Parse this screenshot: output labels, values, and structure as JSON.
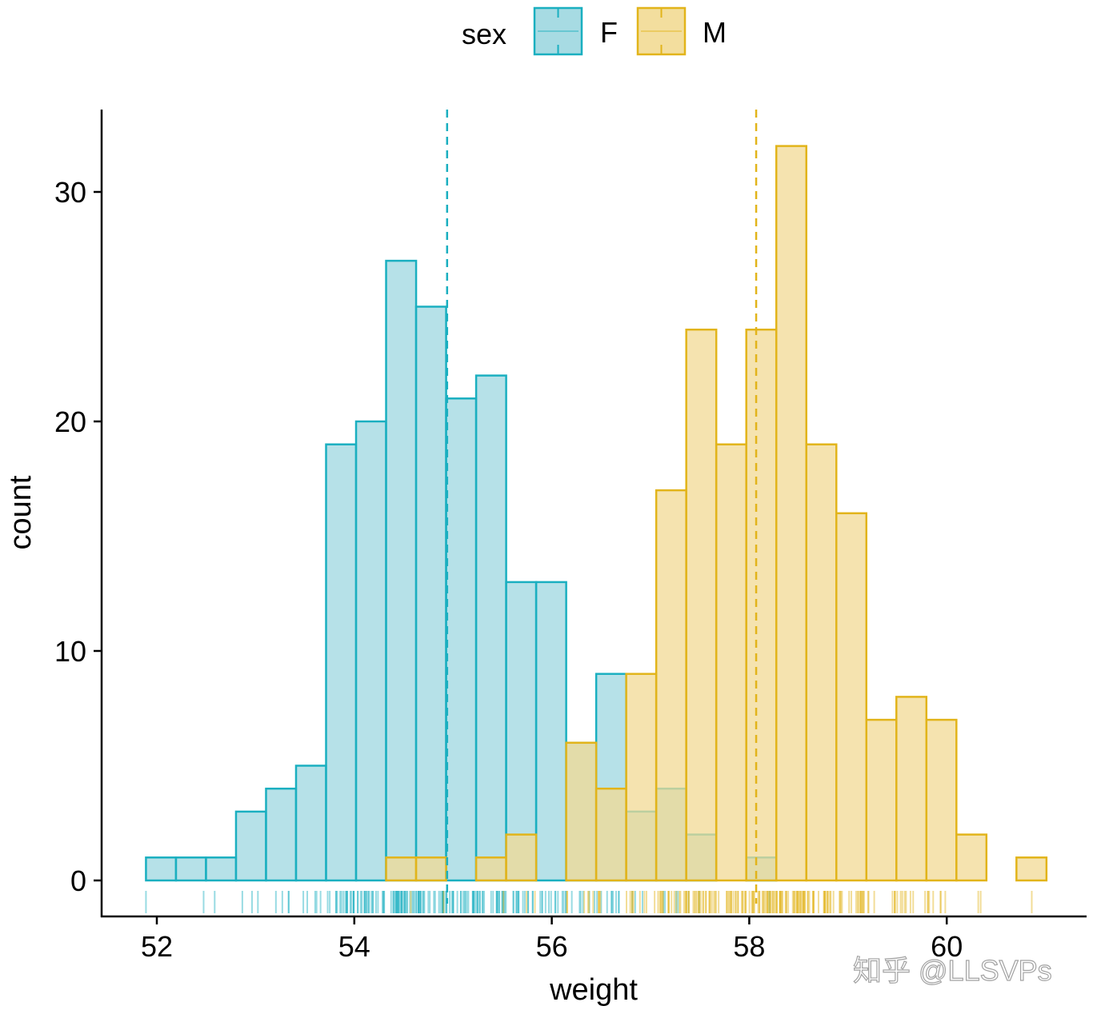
{
  "chart_data": {
    "type": "histogram",
    "xlabel": "weight",
    "ylabel": "count",
    "xlim": [
      51.6,
      61.3
    ],
    "ylim": [
      -1.5,
      33.5
    ],
    "x_ticks": [
      52,
      54,
      56,
      58,
      60
    ],
    "y_ticks": [
      0,
      10,
      20,
      30
    ],
    "grid": false,
    "legend": {
      "title": "sex",
      "position": "top",
      "entries": [
        "F",
        "M"
      ]
    },
    "bin_start": 51.89,
    "bin_width": 0.304,
    "series": [
      {
        "name": "F",
        "color": "#1AAFC0",
        "fill": "#9DD7E0",
        "mean": 54.94,
        "counts": [
          1,
          1,
          1,
          3,
          4,
          5,
          19,
          20,
          27,
          25,
          21,
          22,
          13,
          13,
          6,
          9,
          3,
          4,
          2,
          0,
          1,
          0,
          0,
          0,
          0,
          0,
          0,
          0,
          0,
          0
        ]
      },
      {
        "name": "M",
        "color": "#E2B41A",
        "fill": "#F2DA94",
        "mean": 58.07,
        "counts": [
          0,
          0,
          0,
          0,
          0,
          0,
          0,
          0,
          1,
          1,
          0,
          1,
          2,
          0,
          6,
          4,
          9,
          17,
          24,
          19,
          24,
          32,
          19,
          16,
          7,
          8,
          7,
          2,
          0,
          1
        ]
      }
    ],
    "mean_lines": "dashed",
    "rug": true
  },
  "watermark": "知乎 @LLSVPs"
}
